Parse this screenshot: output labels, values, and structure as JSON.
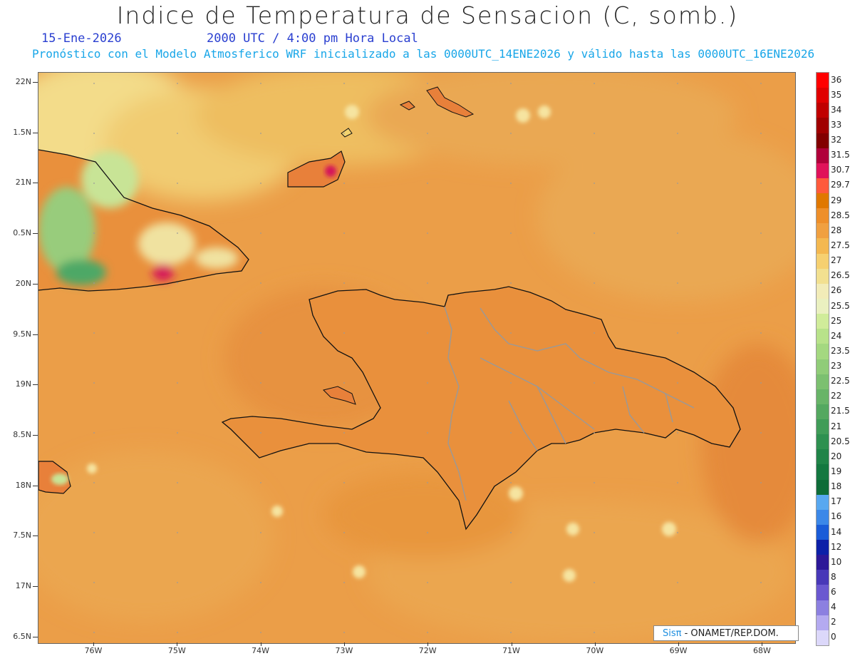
{
  "header": {
    "title": "Indice de Temperatura de Sensacion (C, somb.)",
    "date": "15-Ene-2026",
    "time": "2000 UTC / 4:00 pm Hora Local",
    "forecast_note": "Pronóstico con el Modelo Atmosferico WRF inicializado a las 0000UTC_14ENE2026 y válido hasta las  0000UTC_16ENE2026"
  },
  "axes": {
    "lat_labels": [
      "22N",
      "1.5N",
      "21N",
      "0.5N",
      "20N",
      "9.5N",
      "19N",
      "8.5N",
      "18N",
      "7.5N",
      "17N",
      "6.5N"
    ],
    "lon_labels": [
      "76W",
      "75W",
      "74W",
      "73W",
      "72W",
      "71W",
      "70W",
      "69W",
      "68W"
    ]
  },
  "legend": {
    "labels": [
      "36",
      "35",
      "34",
      "33",
      "32",
      "31.5",
      "30.7",
      "29.7",
      "29",
      "28.5",
      "28",
      "27.5",
      "27",
      "26.5",
      "26",
      "25.5",
      "25",
      "24",
      "23.5",
      "23",
      "22.5",
      "22",
      "21.5",
      "21",
      "20.5",
      "20",
      "19",
      "18",
      "17",
      "16",
      "14",
      "12",
      "10",
      "8",
      "6",
      "4",
      "2",
      "0"
    ],
    "colors": [
      "#ff0000",
      "#e00000",
      "#c00000",
      "#a00000",
      "#820000",
      "#b0003a",
      "#e0125a",
      "#ff5a3c",
      "#e07800",
      "#ee8f2a",
      "#f0a040",
      "#f4b850",
      "#f6d070",
      "#f2e090",
      "#f2ecb8",
      "#eaf0c0",
      "#d0ec9a",
      "#b8e28a",
      "#a4d880",
      "#90cc78",
      "#7cc070",
      "#68b468",
      "#54a860",
      "#409c58",
      "#2e9050",
      "#208448",
      "#147840",
      "#0e6c38",
      "#58a8f0",
      "#3c88e8",
      "#1a5cd8",
      "#0c20a8",
      "#2c1898",
      "#4838b8",
      "#6a58d0",
      "#8c80e0",
      "#b4aaf0",
      "#dcd8fa"
    ]
  },
  "credit": {
    "brand": "Sisπ",
    "text": " - ONAMET/REP.DOM."
  }
}
